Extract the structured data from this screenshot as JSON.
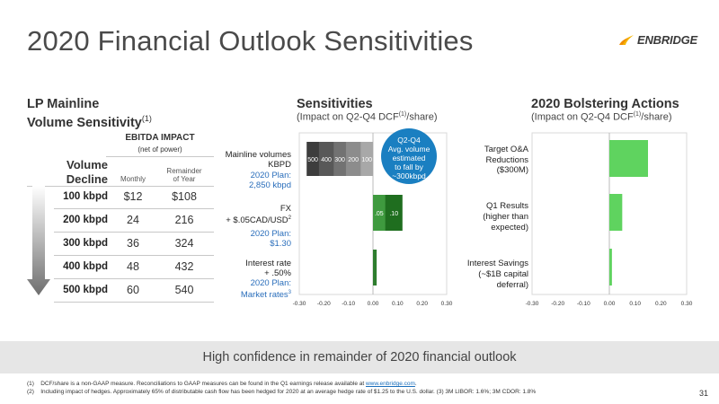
{
  "title": "2020 Financial Outlook Sensitivities",
  "logo": {
    "text": "ENBRIDGE"
  },
  "lp": {
    "title_line1": "LP Mainline",
    "title_line2": "Volume Sensitivity",
    "title_sup": "(1)",
    "ebitda_head": "EBITDA IMPACT",
    "ebitda_sub": "(net of power)",
    "vol_decline_1": "Volume",
    "vol_decline_2": "Decline",
    "col_monthly": "Monthly",
    "col_rem_1": "Remainder",
    "col_rem_2": "of Year",
    "rows": [
      {
        "label": "100 kbpd",
        "monthly": "$12",
        "remainder": "$108"
      },
      {
        "label": "200 kbpd",
        "monthly": "24",
        "remainder": "216"
      },
      {
        "label": "300 kbpd",
        "monthly": "36",
        "remainder": "324"
      },
      {
        "label": "400 kbpd",
        "monthly": "48",
        "remainder": "432"
      },
      {
        "label": "500 kbpd",
        "monthly": "60",
        "remainder": "540"
      }
    ]
  },
  "sensitivities": {
    "title": "Sensitivities",
    "sub_pre": "(Impact on Q2-Q4 DCF",
    "sub_sup": "(1)",
    "sub_post": "/share)",
    "labels": {
      "mainline_1": "Mainline volumes",
      "mainline_2": "KBPD",
      "mainline_plan_1": "2020 Plan:",
      "mainline_plan_2": "2,850 kbpd",
      "fx_1": "FX",
      "fx_2": "+ $.05CAD/USD",
      "fx_sup": "2",
      "fx_plan_1": "2020 Plan:",
      "fx_plan_2": "$1.30",
      "ir_1": "Interest rate",
      "ir_2": "+ .50%",
      "ir_plan_1": "2020 Plan:",
      "ir_plan_2": "Market rates",
      "ir_sup": "3"
    },
    "bubble": {
      "l1": "Q2-Q4",
      "l2": "Avg. volume",
      "l3": "estimated",
      "l4": "to fall by",
      "l5": "~300kbpd"
    }
  },
  "bolstering": {
    "title": "2020 Bolstering Actions",
    "sub_pre": "(Impact on Q2-Q4 DCF",
    "sub_sup": "(1)",
    "sub_post": "/share)",
    "labels": {
      "oam_1": "Target O&A",
      "oam_2": "Reductions",
      "oam_3": "($300M)",
      "q1_1": "Q1 Results",
      "q1_2": "(higher than",
      "q1_3": "expected)",
      "is_1": "Interest Savings",
      "is_2": "(~$1B capital",
      "is_3": "deferral)"
    }
  },
  "chart_data": [
    {
      "type": "bar",
      "title": "Sensitivities",
      "orientation": "horizontal",
      "xlim": [
        -0.3,
        0.3
      ],
      "xticks": [
        "-0.30",
        "-0.20",
        "-0.10",
        "0.00",
        "0.10",
        "0.20",
        "0.30"
      ],
      "categories": [
        "Mainline volumes KBPD",
        "FX + $.05CAD/USD",
        "Interest rate + .50%"
      ],
      "mainline_segments": [
        {
          "label": "500",
          "value": -0.27,
          "color": "#3d3d3d"
        },
        {
          "label": "400",
          "value": -0.22,
          "color": "#585858"
        },
        {
          "label": "300",
          "value": -0.16,
          "color": "#727272"
        },
        {
          "label": "200",
          "value": -0.11,
          "color": "#8c8c8c"
        },
        {
          "label": "100",
          "value": -0.05,
          "color": "#a8a8a8"
        }
      ],
      "fx_segments": [
        {
          "label": ".05",
          "value": 0.05,
          "color": "#3f9a3f"
        },
        {
          "label": ".10",
          "value": 0.07,
          "color": "#1f6e1f"
        }
      ],
      "interest_rate": {
        "value": 0.015,
        "color": "#2e7d2e"
      },
      "colors": {
        "green_dark": "#1f6e1f",
        "green_mid": "#3f9a3f"
      }
    },
    {
      "type": "bar",
      "title": "2020 Bolstering Actions",
      "orientation": "horizontal",
      "xlim": [
        -0.3,
        0.3
      ],
      "xticks": [
        "-0.30",
        "-0.20",
        "-0.10",
        "0.00",
        "0.10",
        "0.20",
        "0.30"
      ],
      "categories": [
        "Target O&A Reductions ($300M)",
        "Q1 Results (higher than expected)",
        "Interest Savings (~$1B capital deferral)"
      ],
      "values": [
        0.15,
        0.05,
        0.01
      ],
      "color": "#5fd35f"
    }
  ],
  "banner": "High confidence in remainder of 2020 financial outlook",
  "footnotes": {
    "f1_num": "(1)",
    "f1_pre": "DCF/share is a non-GAAP measure. Reconciliations to GAAP measures can be found in the Q1 earnings release available at ",
    "f1_link": "www.enbridge.com",
    "f1_post": ".",
    "f2_num": "(2)",
    "f2_text": "Including impact of hedges. Approximately 65% of distributable cash flow has been hedged for 2020 at an average hedge rate of $1.25 to the U.S. dollar. (3) 3M LIBOR: 1.6%; 3M CDOR: 1.8%"
  },
  "page_number": "31"
}
